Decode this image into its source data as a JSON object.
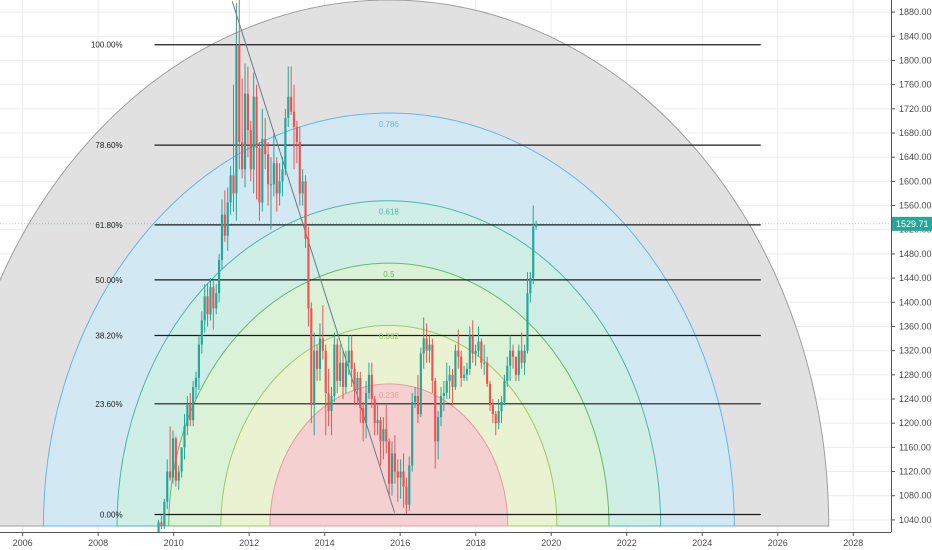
{
  "chart_data": {
    "type": "candlestick",
    "title": "",
    "x_axis": {
      "tick_labels": [
        "2006",
        "2008",
        "2010",
        "2012",
        "2014",
        "2016",
        "2018",
        "2020",
        "2022",
        "2024",
        "2026",
        "2028"
      ],
      "range": [
        2005.4,
        2029.0
      ]
    },
    "y_axis": {
      "tick_labels": [
        "1040.00",
        "1080.00",
        "1120.00",
        "1160.00",
        "1200.00",
        "1240.00",
        "1280.00",
        "1320.00",
        "1360.00",
        "1400.00",
        "1440.00",
        "1480.00",
        "1520.00",
        "1560.00",
        "1600.00",
        "1640.00",
        "1680.00",
        "1720.00",
        "1760.00",
        "1800.00",
        "1840.00",
        "1880.00"
      ],
      "range": [
        1020,
        1900
      ],
      "position": "right"
    },
    "last_price": "1529.71",
    "last_price_value": 1529.71,
    "colors": {
      "up": "#26a69a",
      "down": "#ef5350",
      "price_badge": "#26a69a",
      "grid": "#ececec"
    },
    "fib_retracement_levels": [
      {
        "label": "100.00%",
        "value": 1826
      },
      {
        "label": "78.60%",
        "value": 1660
      },
      {
        "label": "61.80%",
        "value": 1528
      },
      {
        "label": "50.00%",
        "value": 1437
      },
      {
        "label": "38.20%",
        "value": 1345
      },
      {
        "label": "23.60%",
        "value": 1232
      },
      {
        "label": "0.00%",
        "value": 1049
      }
    ],
    "retracement_x_range": [
      2009.6,
      2025.55
    ],
    "fib_arcs": {
      "center": [
        2015.7,
        1030
      ],
      "arcs": [
        {
          "label": "",
          "radius_x": 11.65,
          "radius_y": 870,
          "fill": "#e1e1e1",
          "stroke": "#9e9e9e"
        },
        {
          "label": "0.786",
          "radius_x": 9.15,
          "radius_y": 683,
          "fill": "#d2e8f3",
          "stroke": "#64b5f6"
        },
        {
          "label": "0.618",
          "radius_x": 7.2,
          "radius_y": 538,
          "fill": "#cfeee6",
          "stroke": "#4db6ac"
        },
        {
          "label": "0.5",
          "radius_x": 5.83,
          "radius_y": 435,
          "fill": "#dcf2d6",
          "stroke": "#66bb6a"
        },
        {
          "label": "0.382",
          "radius_x": 4.45,
          "radius_y": 332,
          "fill": "#e9f3d2",
          "stroke": "#9ccc65"
        },
        {
          "label": "0.236",
          "radius_x": 3.15,
          "radius_y": 235,
          "fill": "#f5d0d0",
          "stroke": "#ef9a9a"
        }
      ]
    },
    "trend_line": {
      "from": [
        2011.55,
        1898
      ],
      "to": [
        2015.85,
        1052
      ]
    },
    "candles_x_range": [
      2009.6,
      2019.6
    ],
    "candles": [
      [
        1018,
        1040,
        1008,
        1036
      ],
      [
        1036,
        1047,
        1025,
        1030
      ],
      [
        1030,
        1075,
        1025,
        1070
      ],
      [
        1070,
        1140,
        1058,
        1120
      ],
      [
        1120,
        1195,
        1105,
        1110
      ],
      [
        1110,
        1188,
        1100,
        1175
      ],
      [
        1175,
        1178,
        1095,
        1105
      ],
      [
        1105,
        1130,
        1090,
        1120
      ],
      [
        1120,
        1160,
        1110,
        1160
      ],
      [
        1160,
        1215,
        1140,
        1195
      ],
      [
        1195,
        1245,
        1180,
        1230
      ],
      [
        1230,
        1250,
        1195,
        1205
      ],
      [
        1205,
        1270,
        1195,
        1260
      ],
      [
        1260,
        1285,
        1240,
        1275
      ],
      [
        1275,
        1345,
        1255,
        1330
      ],
      [
        1330,
        1385,
        1315,
        1370
      ],
      [
        1370,
        1430,
        1350,
        1410
      ],
      [
        1410,
        1430,
        1360,
        1380
      ],
      [
        1380,
        1440,
        1370,
        1425
      ],
      [
        1425,
        1435,
        1355,
        1390
      ],
      [
        1390,
        1430,
        1380,
        1415
      ],
      [
        1415,
        1480,
        1400,
        1470
      ],
      [
        1470,
        1570,
        1455,
        1545
      ],
      [
        1545,
        1585,
        1500,
        1510
      ],
      [
        1510,
        1590,
        1485,
        1565
      ],
      [
        1565,
        1625,
        1545,
        1610
      ],
      [
        1610,
        1760,
        1550,
        1580
      ],
      [
        1580,
        1895,
        1535,
        1825
      ],
      [
        1825,
        1920,
        1620,
        1665
      ],
      [
        1665,
        1770,
        1605,
        1620
      ],
      [
        1620,
        1795,
        1590,
        1745
      ],
      [
        1745,
        1790,
        1640,
        1685
      ],
      [
        1685,
        1700,
        1600,
        1620
      ],
      [
        1620,
        1780,
        1580,
        1740
      ],
      [
        1740,
        1760,
        1570,
        1655
      ],
      [
        1655,
        1665,
        1535,
        1565
      ],
      [
        1565,
        1720,
        1550,
        1670
      ],
      [
        1670,
        1705,
        1620,
        1645
      ],
      [
        1645,
        1665,
        1560,
        1595
      ],
      [
        1595,
        1640,
        1520,
        1595
      ],
      [
        1595,
        1680,
        1575,
        1630
      ],
      [
        1630,
        1640,
        1550,
        1580
      ],
      [
        1580,
        1630,
        1560,
        1600
      ],
      [
        1600,
        1640,
        1575,
        1620
      ],
      [
        1620,
        1720,
        1610,
        1705
      ],
      [
        1705,
        1790,
        1690,
        1740
      ],
      [
        1740,
        1790,
        1710,
        1715
      ],
      [
        1715,
        1760,
        1620,
        1690
      ],
      [
        1690,
        1700,
        1630,
        1665
      ],
      [
        1665,
        1690,
        1560,
        1580
      ],
      [
        1580,
        1620,
        1560,
        1600
      ],
      [
        1600,
        1610,
        1490,
        1505
      ],
      [
        1505,
        1525,
        1360,
        1390
      ],
      [
        1390,
        1400,
        1200,
        1230
      ],
      [
        1230,
        1350,
        1180,
        1320
      ],
      [
        1320,
        1330,
        1270,
        1290
      ],
      [
        1290,
        1365,
        1270,
        1340
      ],
      [
        1340,
        1395,
        1305,
        1320
      ],
      [
        1320,
        1330,
        1180,
        1250
      ],
      [
        1250,
        1290,
        1195,
        1220
      ],
      [
        1220,
        1260,
        1180,
        1245
      ],
      [
        1245,
        1350,
        1235,
        1330
      ],
      [
        1330,
        1340,
        1250,
        1270
      ],
      [
        1270,
        1330,
        1260,
        1300
      ],
      [
        1300,
        1320,
        1240,
        1260
      ],
      [
        1260,
        1320,
        1250,
        1300
      ],
      [
        1300,
        1345,
        1280,
        1320
      ],
      [
        1320,
        1345,
        1260,
        1290
      ],
      [
        1290,
        1300,
        1230,
        1255
      ],
      [
        1255,
        1285,
        1230,
        1275
      ],
      [
        1275,
        1285,
        1200,
        1225
      ],
      [
        1225,
        1235,
        1170,
        1200
      ],
      [
        1200,
        1270,
        1175,
        1250
      ],
      [
        1250,
        1300,
        1240,
        1280
      ],
      [
        1280,
        1300,
        1225,
        1240
      ],
      [
        1240,
        1245,
        1180,
        1200
      ],
      [
        1200,
        1230,
        1180,
        1205
      ],
      [
        1205,
        1210,
        1130,
        1170
      ],
      [
        1170,
        1210,
        1140,
        1190
      ],
      [
        1190,
        1230,
        1150,
        1170
      ],
      [
        1170,
        1175,
        1080,
        1100
      ],
      [
        1100,
        1170,
        1080,
        1150
      ],
      [
        1150,
        1180,
        1100,
        1120
      ],
      [
        1120,
        1140,
        1070,
        1110
      ],
      [
        1110,
        1140,
        1075,
        1120
      ],
      [
        1120,
        1150,
        1060,
        1095
      ],
      [
        1095,
        1110,
        1050,
        1065
      ],
      [
        1065,
        1145,
        1055,
        1130
      ],
      [
        1130,
        1250,
        1120,
        1235
      ],
      [
        1235,
        1260,
        1225,
        1245
      ],
      [
        1245,
        1280,
        1200,
        1215
      ],
      [
        1215,
        1325,
        1210,
        1315
      ],
      [
        1315,
        1375,
        1290,
        1340
      ],
      [
        1340,
        1365,
        1300,
        1320
      ],
      [
        1320,
        1345,
        1300,
        1330
      ],
      [
        1330,
        1340,
        1250,
        1270
      ],
      [
        1270,
        1275,
        1125,
        1170
      ],
      [
        1170,
        1220,
        1140,
        1210
      ],
      [
        1210,
        1260,
        1195,
        1245
      ],
      [
        1245,
        1270,
        1220,
        1250
      ],
      [
        1250,
        1300,
        1240,
        1270
      ],
      [
        1270,
        1295,
        1240,
        1280
      ],
      [
        1280,
        1290,
        1230,
        1260
      ],
      [
        1260,
        1330,
        1255,
        1320
      ],
      [
        1320,
        1355,
        1290,
        1310
      ],
      [
        1310,
        1320,
        1260,
        1275
      ],
      [
        1275,
        1295,
        1270,
        1280
      ],
      [
        1280,
        1300,
        1270,
        1290
      ],
      [
        1290,
        1360,
        1280,
        1345
      ],
      [
        1345,
        1370,
        1300,
        1315
      ],
      [
        1315,
        1330,
        1295,
        1320
      ],
      [
        1320,
        1360,
        1310,
        1335
      ],
      [
        1335,
        1340,
        1290,
        1300
      ],
      [
        1300,
        1330,
        1280,
        1300
      ],
      [
        1300,
        1310,
        1260,
        1265
      ],
      [
        1265,
        1270,
        1220,
        1230
      ],
      [
        1230,
        1240,
        1200,
        1215
      ],
      [
        1215,
        1220,
        1180,
        1200
      ],
      [
        1200,
        1240,
        1190,
        1220
      ],
      [
        1220,
        1245,
        1200,
        1235
      ],
      [
        1235,
        1280,
        1230,
        1270
      ],
      [
        1270,
        1310,
        1260,
        1295
      ],
      [
        1295,
        1345,
        1270,
        1320
      ],
      [
        1320,
        1330,
        1290,
        1310
      ],
      [
        1310,
        1310,
        1270,
        1280
      ],
      [
        1280,
        1330,
        1270,
        1320
      ],
      [
        1320,
        1350,
        1290,
        1300
      ],
      [
        1300,
        1330,
        1280,
        1320
      ],
      [
        1320,
        1450,
        1315,
        1415
      ],
      [
        1415,
        1450,
        1400,
        1440
      ],
      [
        1440,
        1560,
        1430,
        1525
      ],
      [
        1525,
        1535,
        1520,
        1529.71
      ]
    ]
  }
}
